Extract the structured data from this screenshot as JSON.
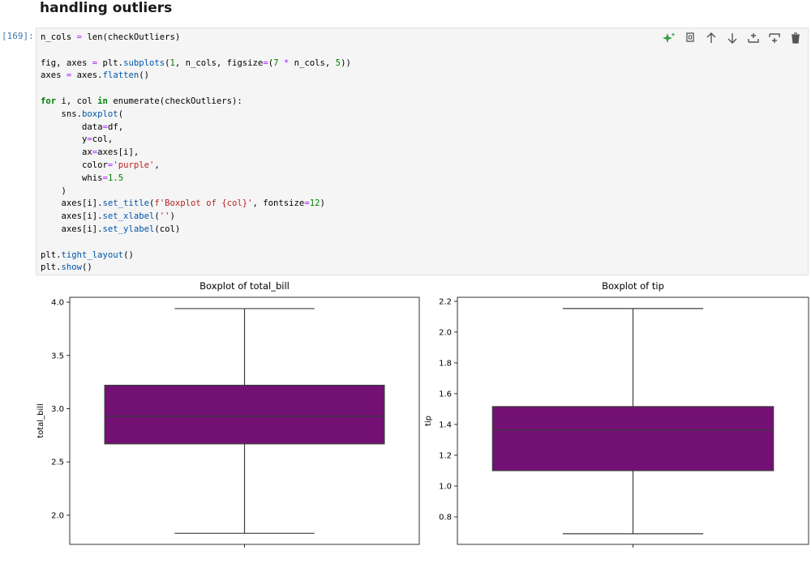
{
  "header": {
    "title": "handling outliers"
  },
  "cell": {
    "prompt": "[169]:",
    "code": {
      "blocks": [
        [
          "n_cols = len(checkOutliers)"
        ],
        [
          "fig, axes = plt.subplots(1, n_cols, figsize=(7 * n_cols, 5))",
          "axes = axes.flatten()"
        ],
        [
          "for i, col in enumerate(checkOutliers):",
          "    sns.boxplot(",
          "        data=df,",
          "        y=col,",
          "        ax=axes[i],",
          "        color='purple',",
          "        whis=1.5",
          "    )",
          "    axes[i].set_title(f'Boxplot of {col}', fontsize=12)",
          "    axes[i].set_xlabel('')",
          "    axes[i].set_ylabel(col)"
        ],
        [
          "plt.tight_layout()",
          "plt.show()"
        ]
      ]
    }
  },
  "chart_data": [
    {
      "type": "box",
      "title": "Boxplot of total_bill",
      "ylabel": "total_bill",
      "color": "#731074",
      "ylim": [
        1.726,
        4.046
      ],
      "yticks": [
        {
          "value": 2.0,
          "label": "2.0"
        },
        2.5,
        {
          "value": 3.0,
          "label": "3.0"
        },
        3.5,
        {
          "value": 4.0,
          "label": "4.0"
        }
      ],
      "box": {
        "whisker_low": 1.83,
        "q1": 2.67,
        "median": 2.93,
        "q3": 3.22,
        "whisker_high": 3.94
      }
    },
    {
      "type": "box",
      "title": "Boxplot of tip",
      "ylabel": "tip",
      "color": "#731074",
      "ylim": [
        0.621,
        2.226
      ],
      "yticks": [
        0.8,
        {
          "value": 1.0,
          "label": "1.0"
        },
        1.2,
        1.4,
        1.6,
        1.8,
        {
          "value": 2.0,
          "label": "2.0"
        },
        2.2
      ],
      "box": {
        "whisker_low": 0.69,
        "q1": 1.1,
        "median": 1.363,
        "q3": 1.516,
        "whisker_high": 2.153
      }
    }
  ]
}
